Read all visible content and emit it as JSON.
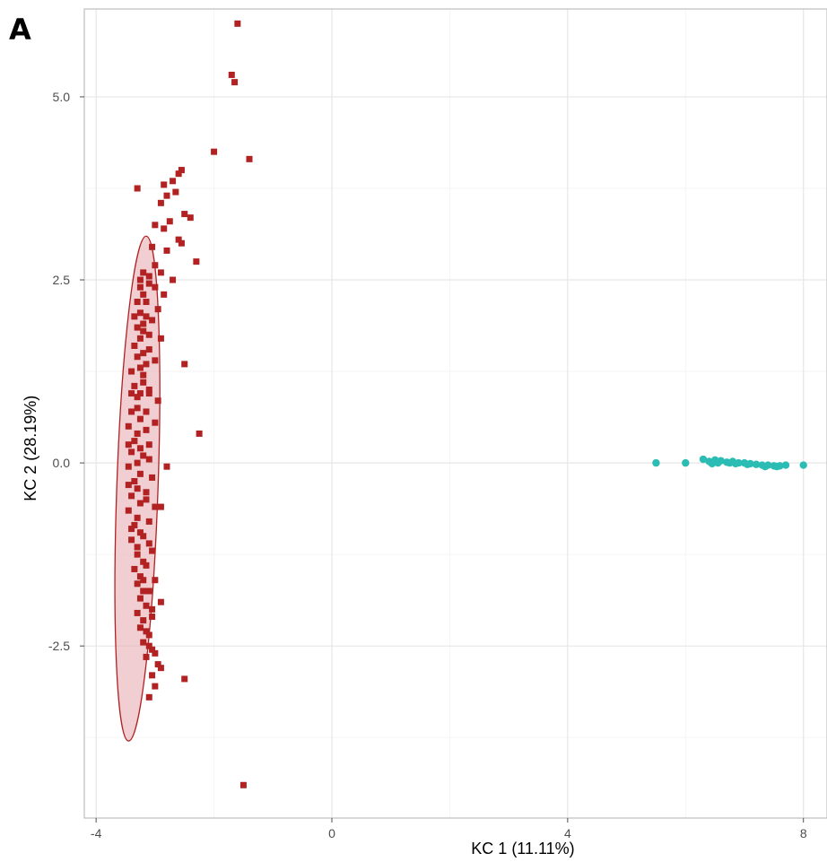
{
  "panel_label": "A",
  "chart_data": {
    "type": "scatter",
    "title": "",
    "xlabel": "KC 1 (11.11%)",
    "ylabel": "KC 2 (28.19%)",
    "xlim": [
      -4.2,
      8.4
    ],
    "ylim": [
      -4.85,
      6.2
    ],
    "x_ticks": [
      -4,
      0,
      4,
      8
    ],
    "x_tick_labels": [
      "-4",
      "0",
      "4",
      "8"
    ],
    "y_ticks": [
      -2.5,
      0.0,
      2.5,
      5.0
    ],
    "y_tick_labels": [
      "-2.5",
      "0.0",
      "2.5",
      "5.0"
    ],
    "grid": true,
    "legend": "none",
    "series": [
      {
        "color": "#b22222",
        "marker": "square",
        "ellipse": {
          "center": [
            -3.3,
            -0.35
          ],
          "radius_x": 0.35,
          "radius_y": 3.45,
          "fill": "#e8b4b8"
        },
        "points": [
          [
            -1.6,
            6.0
          ],
          [
            -1.7,
            5.3
          ],
          [
            -1.65,
            5.2
          ],
          [
            -1.4,
            4.15
          ],
          [
            -2.0,
            4.25
          ],
          [
            -3.3,
            3.75
          ],
          [
            -2.55,
            4.0
          ],
          [
            -2.6,
            3.95
          ],
          [
            -2.7,
            3.85
          ],
          [
            -2.85,
            3.8
          ],
          [
            -2.65,
            3.7
          ],
          [
            -2.8,
            3.65
          ],
          [
            -2.9,
            3.55
          ],
          [
            -2.4,
            3.35
          ],
          [
            -2.5,
            3.4
          ],
          [
            -2.75,
            3.3
          ],
          [
            -3.0,
            3.25
          ],
          [
            -2.85,
            3.2
          ],
          [
            -2.6,
            3.05
          ],
          [
            -2.55,
            3.0
          ],
          [
            -3.05,
            2.95
          ],
          [
            -2.8,
            2.9
          ],
          [
            -2.3,
            2.75
          ],
          [
            -3.0,
            2.7
          ],
          [
            -2.9,
            2.6
          ],
          [
            -3.1,
            2.55
          ],
          [
            -2.7,
            2.5
          ],
          [
            -3.0,
            2.4
          ],
          [
            -2.85,
            2.3
          ],
          [
            -3.15,
            2.2
          ],
          [
            -2.95,
            2.1
          ],
          [
            -3.05,
            1.95
          ],
          [
            -3.2,
            1.8
          ],
          [
            -2.9,
            1.7
          ],
          [
            -3.1,
            1.55
          ],
          [
            -3.0,
            1.4
          ],
          [
            -2.5,
            1.35
          ],
          [
            -3.2,
            1.2
          ],
          [
            -3.1,
            1.0
          ],
          [
            -2.95,
            0.85
          ],
          [
            -3.15,
            0.7
          ],
          [
            -3.0,
            0.55
          ],
          [
            -2.25,
            0.4
          ],
          [
            -3.1,
            0.25
          ],
          [
            -3.2,
            0.1
          ],
          [
            -2.8,
            -0.05
          ],
          [
            -3.05,
            -0.2
          ],
          [
            -3.15,
            -0.4
          ],
          [
            -3.0,
            -0.6
          ],
          [
            -2.9,
            -0.6
          ],
          [
            -3.1,
            -0.8
          ],
          [
            -3.2,
            -1.0
          ],
          [
            -3.05,
            -1.2
          ],
          [
            -3.15,
            -1.4
          ],
          [
            -3.0,
            -1.6
          ],
          [
            -3.1,
            -1.75
          ],
          [
            -2.9,
            -1.9
          ],
          [
            -3.05,
            -2.1
          ],
          [
            -3.15,
            -2.3
          ],
          [
            -3.1,
            -2.5
          ],
          [
            -3.0,
            -2.6
          ],
          [
            -2.95,
            -2.75
          ],
          [
            -3.05,
            -2.9
          ],
          [
            -2.9,
            -2.8
          ],
          [
            -3.0,
            -3.05
          ],
          [
            -2.5,
            -2.95
          ],
          [
            -3.1,
            -3.2
          ],
          [
            -1.5,
            -4.4
          ],
          [
            -3.2,
            2.6
          ],
          [
            -3.25,
            2.4
          ],
          [
            -3.3,
            2.2
          ],
          [
            -3.35,
            2.0
          ],
          [
            -3.3,
            1.85
          ],
          [
            -3.35,
            1.6
          ],
          [
            -3.3,
            1.45
          ],
          [
            -3.4,
            1.25
          ],
          [
            -3.35,
            1.05
          ],
          [
            -3.3,
            0.9
          ],
          [
            -3.4,
            0.7
          ],
          [
            -3.45,
            0.5
          ],
          [
            -3.35,
            0.3
          ],
          [
            -3.4,
            0.15
          ],
          [
            -3.45,
            -0.05
          ],
          [
            -3.35,
            -0.25
          ],
          [
            -3.4,
            -0.45
          ],
          [
            -3.45,
            -0.65
          ],
          [
            -3.35,
            -0.85
          ],
          [
            -3.4,
            -1.05
          ],
          [
            -3.3,
            -1.25
          ],
          [
            -3.35,
            -1.45
          ],
          [
            -3.3,
            -1.65
          ],
          [
            -3.25,
            -1.85
          ],
          [
            -3.3,
            -2.05
          ],
          [
            -3.25,
            -2.25
          ],
          [
            -3.2,
            -2.45
          ],
          [
            -3.15,
            -2.65
          ],
          [
            -3.25,
            2.5
          ],
          [
            -3.2,
            2.3
          ],
          [
            -3.25,
            2.05
          ],
          [
            -3.2,
            1.9
          ],
          [
            -3.25,
            1.7
          ],
          [
            -3.2,
            1.5
          ],
          [
            -3.25,
            1.3
          ],
          [
            -3.2,
            1.1
          ],
          [
            -3.25,
            0.95
          ],
          [
            -3.3,
            0.75
          ],
          [
            -3.25,
            0.6
          ],
          [
            -3.3,
            0.4
          ],
          [
            -3.25,
            0.2
          ],
          [
            -3.3,
            0.0
          ],
          [
            -3.25,
            -0.15
          ],
          [
            -3.3,
            -0.35
          ],
          [
            -3.25,
            -0.55
          ],
          [
            -3.3,
            -0.75
          ],
          [
            -3.25,
            -0.95
          ],
          [
            -3.3,
            -1.15
          ],
          [
            -3.2,
            -1.35
          ],
          [
            -3.25,
            -1.55
          ],
          [
            -3.2,
            -1.75
          ],
          [
            -3.15,
            -1.95
          ],
          [
            -3.2,
            -2.15
          ],
          [
            -3.1,
            -2.35
          ],
          [
            -3.05,
            -2.55
          ],
          [
            -3.1,
            2.45
          ],
          [
            -3.15,
            2.0
          ],
          [
            -3.1,
            1.75
          ],
          [
            -3.15,
            1.35
          ],
          [
            -3.1,
            0.95
          ],
          [
            -3.15,
            0.45
          ],
          [
            -3.1,
            0.05
          ],
          [
            -3.15,
            -0.5
          ],
          [
            -3.1,
            -1.1
          ],
          [
            -3.2,
            -1.6
          ],
          [
            -3.05,
            -2.0
          ],
          [
            -3.4,
            0.95
          ],
          [
            -3.45,
            0.25
          ],
          [
            -3.45,
            -0.3
          ],
          [
            -3.4,
            -0.9
          ]
        ]
      },
      {
        "color": "#2bbcb4",
        "marker": "circle",
        "points": [
          [
            5.5,
            0.0
          ],
          [
            6.0,
            0.0
          ],
          [
            6.3,
            0.05
          ],
          [
            6.4,
            0.02
          ],
          [
            6.5,
            0.04
          ],
          [
            6.6,
            0.03
          ],
          [
            6.7,
            0.01
          ],
          [
            6.8,
            0.02
          ],
          [
            6.9,
            0.0
          ],
          [
            7.0,
            0.0
          ],
          [
            7.1,
            -0.01
          ],
          [
            7.2,
            -0.02
          ],
          [
            7.3,
            -0.03
          ],
          [
            7.4,
            -0.03
          ],
          [
            7.5,
            -0.04
          ],
          [
            7.6,
            -0.04
          ],
          [
            7.7,
            -0.03
          ],
          [
            8.0,
            -0.03
          ],
          [
            6.45,
            -0.01
          ],
          [
            6.75,
            0.0
          ],
          [
            7.05,
            -0.02
          ],
          [
            7.35,
            -0.05
          ],
          [
            7.55,
            -0.05
          ],
          [
            6.55,
            0.0
          ],
          [
            6.85,
            -0.01
          ]
        ]
      }
    ]
  }
}
